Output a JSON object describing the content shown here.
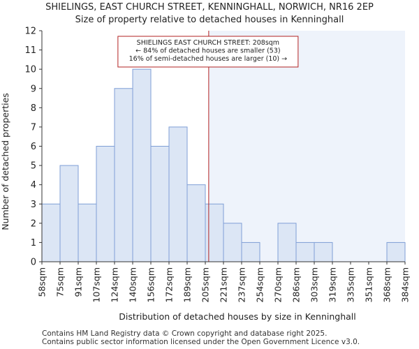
{
  "title_line1": "SHIELINGS, EAST CHURCH STREET, KENNINGHALL, NORWICH, NR16 2EP",
  "title_line2": "Size of property relative to detached houses in Kenninghall",
  "footer_line1": "Contains HM Land Registry data © Crown copyright and database right 2025.",
  "footer_line2": "Contains public sector information licensed under the Open Government Licence v3.0.",
  "colors": {
    "bar_fill": "#dce6f5",
    "bar_stroke": "#7f9fd6",
    "highlight_bg": "#eef3fb",
    "marker": "#b22222",
    "axis": "#333333"
  },
  "chart_data": {
    "type": "bar",
    "title": "Size of property relative to detached houses in Kenninghall",
    "xlabel": "Distribution of detached houses by size in Kenninghall",
    "ylabel": "Number of detached properties",
    "ylim": [
      0,
      12
    ],
    "yticks": [
      0,
      1,
      2,
      3,
      4,
      5,
      6,
      7,
      8,
      9,
      10,
      11,
      12
    ],
    "bin_edges": [
      "58sqm",
      "75sqm",
      "91sqm",
      "107sqm",
      "124sqm",
      "140sqm",
      "156sqm",
      "172sqm",
      "189sqm",
      "205sqm",
      "221sqm",
      "237sqm",
      "254sqm",
      "270sqm",
      "286sqm",
      "303sqm",
      "319sqm",
      "335sqm",
      "351sqm",
      "368sqm",
      "384sqm"
    ],
    "values": [
      3,
      5,
      3,
      6,
      9,
      10,
      6,
      7,
      4,
      3,
      2,
      1,
      0,
      2,
      1,
      1,
      0,
      0,
      0,
      1
    ],
    "marker_value_sqm": 208,
    "annotation": [
      "SHIELINGS EAST CHURCH STREET: 208sqm",
      "← 84% of detached houses are smaller (53)",
      "16% of semi-detached houses are larger (10) →"
    ]
  }
}
